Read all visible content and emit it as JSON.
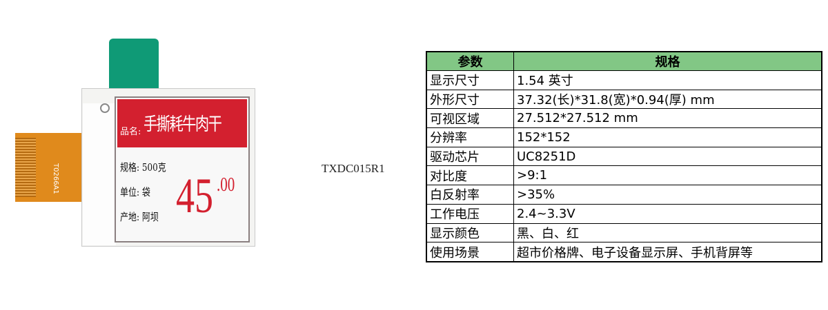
{
  "product_image": {
    "fpc_label": "T0266A1",
    "screen": {
      "banner_label": "品名:",
      "banner_name": "手撕耗牛肉干",
      "lines": [
        "规格: 500克",
        "单位: 袋",
        "产地: 阿坝"
      ],
      "price_main": "45",
      "price_decimal": ".00"
    },
    "colors": {
      "banner": "#d3202f",
      "tab": "#0f9a76",
      "fpc": "#e08a1c"
    }
  },
  "model": "TXDC015R1",
  "spec_table": {
    "header_color": "#82c785",
    "headers": [
      "参数",
      "规格"
    ],
    "rows": [
      [
        "显示尺寸",
        "1.54 英寸"
      ],
      [
        "外形尺寸",
        "37.32(长)*31.8(宽)*0.94(厚) mm"
      ],
      [
        "可视区域",
        "27.512*27.512 mm"
      ],
      [
        "分辨率",
        "152*152"
      ],
      [
        "驱动芯片",
        "UC8251D"
      ],
      [
        "对比度",
        ">9:1"
      ],
      [
        "白反射率",
        ">35%"
      ],
      [
        "工作电压",
        "2.4~3.3V"
      ],
      [
        "显示颜色",
        "黑、白、红"
      ],
      [
        "使用场景",
        "超市价格牌、电子设备显示屏、手机背屏等"
      ]
    ]
  }
}
